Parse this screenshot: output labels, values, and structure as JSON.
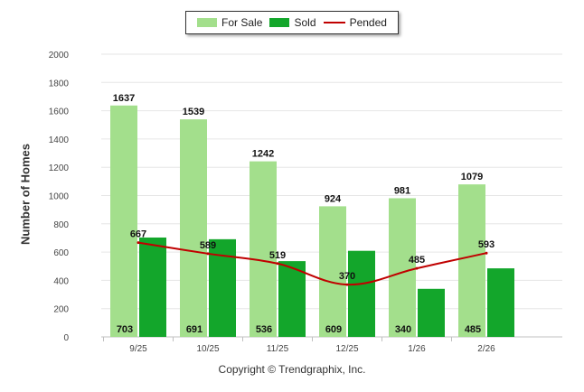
{
  "chart_data": {
    "type": "bar",
    "categories": [
      "9/25",
      "10/25",
      "11/25",
      "12/25",
      "1/26",
      "2/26"
    ],
    "series": [
      {
        "name": "For Sale",
        "kind": "bar",
        "color": "#a3df8c",
        "values": [
          1637,
          1539,
          1242,
          924,
          981,
          1079
        ]
      },
      {
        "name": "Sold",
        "kind": "bar",
        "color": "#13a62b",
        "values": [
          703,
          691,
          536,
          609,
          340,
          485
        ]
      },
      {
        "name": "Pended",
        "kind": "line",
        "color": "#c00000",
        "values": [
          667,
          589,
          519,
          370,
          485,
          593
        ]
      }
    ],
    "title": "",
    "xlabel": "",
    "ylabel": "Number of Homes",
    "ylim": [
      0,
      2000
    ],
    "yticks": [
      0,
      200,
      400,
      600,
      800,
      1000,
      1200,
      1400,
      1600,
      1800,
      2000
    ],
    "grid": true,
    "legend_position": "top-center"
  },
  "legend": {
    "for_sale": "For Sale",
    "sold": "Sold",
    "pended": "Pended"
  },
  "footer": {
    "copyright": "Copyright © Trendgraphix, Inc."
  }
}
